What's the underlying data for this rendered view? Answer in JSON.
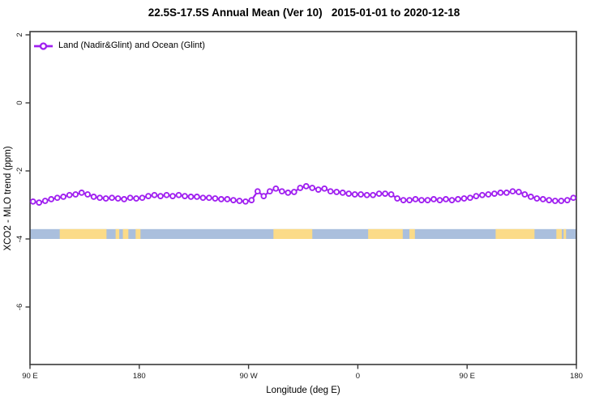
{
  "figure": {
    "title": "22.5S-17.5S Annual Mean (Ver 10)   2015-01-01 to 2020-12-18",
    "xlabel": "Longitude (deg E)",
    "ylabel": "XCO2 - MLO trend (ppm)",
    "legend": {
      "label": "Land (Nadir&Glint) and Ocean (Glint)",
      "marker": "open-circle",
      "color": "#a020f0"
    }
  },
  "colors": {
    "series": "#a020f0",
    "marker_fill": "#ffffff",
    "ocean": "#aabfdd",
    "land": "#fbdb88",
    "axis": "#3a3a3a",
    "tick_text": "#1a1a1a"
  },
  "chart_data": {
    "type": "line",
    "title": "22.5S-17.5S Annual Mean (Ver 10)   2015-01-01 to 2020-12-18",
    "xlabel": "Longitude (deg E)",
    "ylabel": "XCO2 - MLO trend (ppm)",
    "grid": false,
    "legend_position": "top-left",
    "x_axis": {
      "range_deg": [
        90,
        540
      ],
      "tick_values_deg": [
        90,
        180,
        270,
        360,
        450,
        540
      ],
      "tick_labels": [
        "90 E",
        "180",
        "90 W",
        "0",
        "90 E",
        "180"
      ],
      "note": "longitude axis wraps eastward: 90E to 180 to 90W to 0 to 90E to 180"
    },
    "y_axis": {
      "range_ppm": [
        -7.7,
        2.1
      ],
      "tick_values": [
        2,
        0,
        -2,
        -4,
        -6
      ],
      "tick_labels": [
        "2",
        "0",
        "-2",
        "-4",
        "-6"
      ]
    },
    "series": [
      {
        "name": "Land (Nadir&Glint) and Ocean (Glint)",
        "marker": "open-circle",
        "color": "#a020f0",
        "lon_start_deg": 92.5,
        "lon_step_deg": 5,
        "values_ppm": [
          -2.9,
          -2.93,
          -2.88,
          -2.83,
          -2.79,
          -2.76,
          -2.71,
          -2.69,
          -2.64,
          -2.69,
          -2.76,
          -2.79,
          -2.81,
          -2.79,
          -2.81,
          -2.83,
          -2.79,
          -2.81,
          -2.79,
          -2.74,
          -2.71,
          -2.74,
          -2.71,
          -2.74,
          -2.71,
          -2.74,
          -2.76,
          -2.76,
          -2.79,
          -2.79,
          -2.81,
          -2.83,
          -2.83,
          -2.86,
          -2.88,
          -2.9,
          -2.86,
          -2.6,
          -2.74,
          -2.6,
          -2.52,
          -2.6,
          -2.64,
          -2.62,
          -2.5,
          -2.45,
          -2.5,
          -2.55,
          -2.52,
          -2.6,
          -2.62,
          -2.64,
          -2.67,
          -2.69,
          -2.69,
          -2.71,
          -2.71,
          -2.67,
          -2.67,
          -2.69,
          -2.81,
          -2.86,
          -2.86,
          -2.83,
          -2.86,
          -2.86,
          -2.83,
          -2.86,
          -2.83,
          -2.86,
          -2.83,
          -2.81,
          -2.79,
          -2.74,
          -2.71,
          -2.69,
          -2.67,
          -2.64,
          -2.64,
          -2.6,
          -2.62,
          -2.69,
          -2.76,
          -2.81,
          -2.83,
          -2.86,
          -2.88,
          -2.88,
          -2.86,
          -2.79
        ]
      }
    ],
    "land_ocean_strip": {
      "y_range_ppm": [
        -3.71,
        -4.0
      ],
      "ocean_color": "#aabfdd",
      "land_color": "#fbdb88",
      "land_segments_deg": [
        [
          114.5,
          153
        ],
        [
          160.5,
          163.5
        ],
        [
          166.5,
          171
        ],
        [
          177,
          181
        ],
        [
          290.5,
          322.5
        ],
        [
          368.5,
          397
        ],
        [
          402.5,
          407
        ],
        [
          473.5,
          505.5
        ],
        [
          523.5,
          528
        ],
        [
          529.5,
          531.5
        ]
      ]
    }
  }
}
